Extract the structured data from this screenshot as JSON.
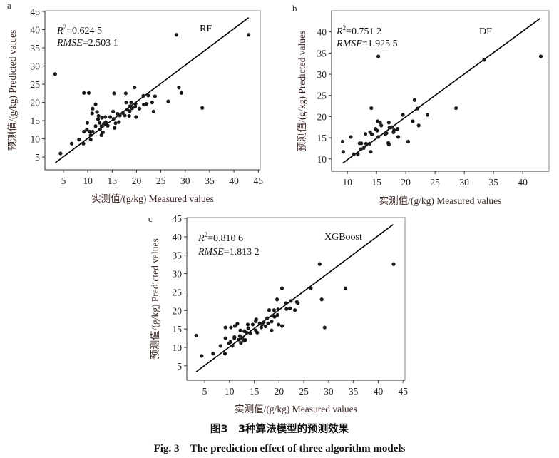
{
  "chart_data": [
    {
      "type": "scatter",
      "panel_label": "a",
      "model": "RF",
      "r2_label": "R",
      "r2_sup": "2",
      "r2_value": "=0.624 5",
      "rmse_label": "RMSE",
      "rmse_value": "=2.503 1",
      "xlabel": "实测值/(g/kg) Measured values",
      "ylabel": "预测值/(g/kg) Predicted values",
      "xlim": [
        1.2,
        45.4
      ],
      "ylim": [
        1.5,
        45.2
      ],
      "xticks": [
        5,
        10,
        15,
        20,
        25,
        30,
        35,
        40,
        45
      ],
      "yticks": [
        5,
        10,
        15,
        20,
        25,
        30,
        35,
        40,
        45
      ],
      "fit_line": [
        [
          3.3,
          3.4
        ],
        [
          43,
          43.3
        ]
      ],
      "points": [
        [
          3.3,
          27.8
        ],
        [
          4.4,
          6
        ],
        [
          6.7,
          8.7
        ],
        [
          8.2,
          9.8
        ],
        [
          9.1,
          8.7
        ],
        [
          9.2,
          12
        ],
        [
          9.2,
          22.6
        ],
        [
          10.2,
          22.6
        ],
        [
          9.9,
          14.4
        ],
        [
          9.8,
          12.5
        ],
        [
          10.4,
          12
        ],
        [
          10.6,
          11
        ],
        [
          10.6,
          9.8
        ],
        [
          11,
          12
        ],
        [
          10.9,
          17
        ],
        [
          11,
          18.3
        ],
        [
          11.6,
          19.5
        ],
        [
          11.6,
          13.5
        ],
        [
          11.9,
          17.4
        ],
        [
          12.1,
          15.4
        ],
        [
          12.2,
          16.3
        ],
        [
          12.4,
          14.4
        ],
        [
          12.5,
          12.6
        ],
        [
          12.8,
          13.5
        ],
        [
          12.8,
          11
        ],
        [
          12.9,
          15.8
        ],
        [
          13.1,
          11.8
        ],
        [
          13.3,
          14.2
        ],
        [
          13.6,
          16
        ],
        [
          13.7,
          14.6
        ],
        [
          14.1,
          13.6
        ],
        [
          14.6,
          16
        ],
        [
          15.2,
          17.5
        ],
        [
          15.3,
          15.5
        ],
        [
          15.4,
          22.5
        ],
        [
          15.5,
          13
        ],
        [
          15.7,
          14.3
        ],
        [
          16.1,
          16.9
        ],
        [
          16.4,
          14.6
        ],
        [
          16.6,
          16.4
        ],
        [
          17.2,
          17.1
        ],
        [
          17.6,
          16.4
        ],
        [
          17.8,
          22.5
        ],
        [
          17.9,
          20
        ],
        [
          18.1,
          18
        ],
        [
          18.5,
          16.3
        ],
        [
          18.6,
          17.6
        ],
        [
          18.7,
          19
        ],
        [
          18.9,
          20
        ],
        [
          19.1,
          18.4
        ],
        [
          19.6,
          24.1
        ],
        [
          19.7,
          18.8
        ],
        [
          19.9,
          16
        ],
        [
          19.8,
          19.6
        ],
        [
          20.6,
          18.3
        ],
        [
          21.4,
          21.8
        ],
        [
          21.5,
          19.4
        ],
        [
          22,
          19.6
        ],
        [
          22.4,
          21.9
        ],
        [
          23.2,
          20
        ],
        [
          23.5,
          17.5
        ],
        [
          23.8,
          21.7
        ],
        [
          26.5,
          20.3
        ],
        [
          28.2,
          38.6
        ],
        [
          28.7,
          24.1
        ],
        [
          29.2,
          22.6
        ],
        [
          33.5,
          18.5
        ],
        [
          43,
          38.6
        ]
      ]
    },
    {
      "type": "scatter",
      "panel_label": "b",
      "model": "DF",
      "r2_label": "R",
      "r2_sup": "2",
      "r2_value": "=0.751 2",
      "rmse_label": "RMSE",
      "rmse_value": "=1.925 5",
      "xlabel": "实测值/(g/kg) Measured values",
      "ylabel": "预测值/(g/kg) Predicted values",
      "xlim": [
        7.3,
        44.5
      ],
      "ylim": [
        7.1,
        45
      ],
      "xticks": [
        10,
        15,
        20,
        25,
        30,
        35,
        40
      ],
      "yticks": [
        10,
        15,
        20,
        25,
        30,
        35,
        40
      ],
      "fit_line": [
        [
          9.2,
          9
        ],
        [
          43,
          43.2
        ]
      ],
      "points": [
        [
          9.2,
          14.1
        ],
        [
          9.3,
          11.7
        ],
        [
          10.6,
          15.2
        ],
        [
          11.1,
          11.1
        ],
        [
          11.8,
          11.1
        ],
        [
          12.1,
          13.7
        ],
        [
          12.3,
          12.3
        ],
        [
          12.4,
          13.7
        ],
        [
          12.8,
          12.6
        ],
        [
          13.1,
          15.9
        ],
        [
          13.2,
          13.6
        ],
        [
          13.8,
          13.6
        ],
        [
          13.9,
          16.3
        ],
        [
          14,
          11.7
        ],
        [
          14.2,
          15.8
        ],
        [
          14.1,
          22
        ],
        [
          14.8,
          17.1
        ],
        [
          15.1,
          16.7
        ],
        [
          15.2,
          18.9
        ],
        [
          15.3,
          15.2
        ],
        [
          15.3,
          34.2
        ],
        [
          15.6,
          18.6
        ],
        [
          15.8,
          17.9
        ],
        [
          16.5,
          15.9
        ],
        [
          16.7,
          16.1
        ],
        [
          17,
          13.8
        ],
        [
          17.1,
          13.4
        ],
        [
          17.1,
          18.6
        ],
        [
          17.2,
          17.4
        ],
        [
          17.6,
          17.5
        ],
        [
          17.9,
          16.3
        ],
        [
          18,
          16.8
        ],
        [
          18.6,
          17.1
        ],
        [
          18.7,
          15.2
        ],
        [
          19.5,
          20.4
        ],
        [
          20.4,
          14.1
        ],
        [
          21.2,
          18.9
        ],
        [
          21.5,
          23.9
        ],
        [
          22,
          21.9
        ],
        [
          22.2,
          17.9
        ],
        [
          23.7,
          20.4
        ],
        [
          28.6,
          22
        ],
        [
          33.4,
          33.4
        ],
        [
          43.1,
          34.2
        ]
      ]
    },
    {
      "type": "scatter",
      "panel_label": "c",
      "model": "XGBoost",
      "r2_label": "R",
      "r2_sup": "2",
      "r2_value": "=0.810 6",
      "rmse_label": "RMSE",
      "rmse_value": "=1.813 2",
      "xlabel": "实测值/(g/kg) Measured values",
      "ylabel": "预测值/(g/kg) Predicted values",
      "xlim": [
        1.4,
        45.4
      ],
      "ylim": [
        1.1,
        45.2
      ],
      "xticks": [
        5,
        10,
        15,
        20,
        25,
        30,
        35,
        40,
        45
      ],
      "yticks": [
        5,
        10,
        15,
        20,
        25,
        30,
        35,
        40,
        45
      ],
      "fit_line": [
        [
          3.3,
          3.4
        ],
        [
          43,
          43.3
        ]
      ],
      "points": [
        [
          3.3,
          13.2
        ],
        [
          4.4,
          7.7
        ],
        [
          6.7,
          8.3
        ],
        [
          8.2,
          10.4
        ],
        [
          9.1,
          8.3
        ],
        [
          9.2,
          12.5
        ],
        [
          9.2,
          15.4
        ],
        [
          10.3,
          15.4
        ],
        [
          10.2,
          11.5
        ],
        [
          9.9,
          11.1
        ],
        [
          10.6,
          10.4
        ],
        [
          11,
          12.5
        ],
        [
          11,
          12.8
        ],
        [
          11.1,
          15.8
        ],
        [
          11.6,
          16.4
        ],
        [
          11.9,
          12.1
        ],
        [
          12.1,
          13.1
        ],
        [
          12.2,
          14.6
        ],
        [
          12.3,
          11.2
        ],
        [
          12.6,
          12.5
        ],
        [
          12.8,
          11.8
        ],
        [
          13,
          14.4
        ],
        [
          13.2,
          12
        ],
        [
          13.5,
          14
        ],
        [
          13.7,
          16.2
        ],
        [
          13.8,
          15.2
        ],
        [
          14.2,
          13.8
        ],
        [
          14.7,
          16.2
        ],
        [
          15.3,
          17.1
        ],
        [
          15.4,
          17.6
        ],
        [
          15.3,
          14.6
        ],
        [
          15.6,
          14
        ],
        [
          16.1,
          16.5
        ],
        [
          16.4,
          15.4
        ],
        [
          16.6,
          16.2
        ],
        [
          16.9,
          16.8
        ],
        [
          17.3,
          15.7
        ],
        [
          17.6,
          17.9
        ],
        [
          17.8,
          16.5
        ],
        [
          18,
          20.1
        ],
        [
          18.5,
          17
        ],
        [
          18.5,
          14.6
        ],
        [
          18.7,
          18.6
        ],
        [
          19,
          20.1
        ],
        [
          19.1,
          18.3
        ],
        [
          19.6,
          23
        ],
        [
          19.7,
          18.8
        ],
        [
          19.8,
          20.3
        ],
        [
          19.9,
          16.2
        ],
        [
          20.6,
          26
        ],
        [
          20.6,
          15.8
        ],
        [
          21.4,
          22
        ],
        [
          21.5,
          20.4
        ],
        [
          22.2,
          20.6
        ],
        [
          22.4,
          22.6
        ],
        [
          23.2,
          20.1
        ],
        [
          23.6,
          22.3
        ],
        [
          23.8,
          22
        ],
        [
          26.4,
          26
        ],
        [
          28.2,
          32.6
        ],
        [
          28.6,
          23
        ],
        [
          29.2,
          15.4
        ],
        [
          33.4,
          26
        ],
        [
          43.1,
          32.6
        ]
      ]
    }
  ],
  "caption": {
    "cn": "图3　3种算法模型的预测效果",
    "en": "Fig. 3　The prediction effect of three algorithm models"
  },
  "colors": {
    "point": "#1a1a1a",
    "line": "#000000",
    "frame": "#888888"
  }
}
